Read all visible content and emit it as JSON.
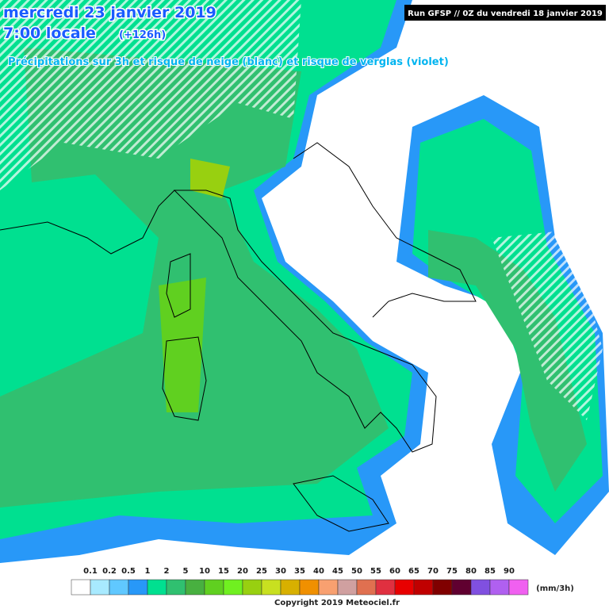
{
  "header": {
    "date": "mercredi 23 janvier 2019",
    "time": "7:00 locale",
    "lead": "(+126h)",
    "subtitle": "Précipitations sur 3h et risque de neige (blanc) et risque de verglas (violet)",
    "run": "Run GFSP // 0Z du vendredi 18 janvier 2019"
  },
  "legend": {
    "labels": [
      "0.1",
      "0.2",
      "0.5",
      "1",
      "2",
      "5",
      "10",
      "15",
      "20",
      "25",
      "30",
      "35",
      "40",
      "45",
      "50",
      "55",
      "60",
      "65",
      "70",
      "75",
      "80",
      "85",
      "90"
    ],
    "colors": [
      "#ffffff",
      "#a8eaff",
      "#60c8ff",
      "#2898f8",
      "#00e090",
      "#30c070",
      "#48b040",
      "#60d020",
      "#70f020",
      "#98d010",
      "#c8e020",
      "#d8b000",
      "#f09000",
      "#f8a070",
      "#d0a0a0",
      "#e07050",
      "#e03040",
      "#e80000",
      "#c00000",
      "#800000",
      "#600030",
      "#8050e0",
      "#b060f0",
      "#f060f0"
    ],
    "unit": "(mm/3h)"
  },
  "footer": {
    "copyright": "Copyright 2019 Meteociel.fr"
  }
}
